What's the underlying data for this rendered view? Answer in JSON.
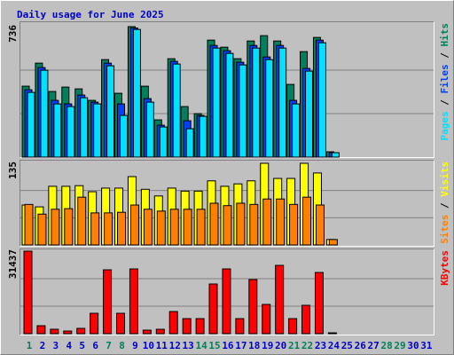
{
  "title": "Daily usage for June 2025",
  "legend_separator": " / ",
  "chart_data": [
    {
      "type": "bar",
      "ylim": [
        0,
        736
      ],
      "yticks": [
        736
      ],
      "series": [
        {
          "name": "Hits",
          "color": "#00805c",
          "values": [
            400,
            530,
            370,
            395,
            385,
            320,
            550,
            360,
            736,
            400,
            210,
            555,
            285,
            245,
            660,
            620,
            555,
            655,
            685,
            655,
            410,
            595,
            675,
            30,
            0,
            0,
            0,
            0,
            0,
            0,
            0
          ]
        },
        {
          "name": "Files",
          "color": "#0040ff",
          "values": [
            380,
            505,
            320,
            300,
            350,
            310,
            530,
            300,
            728,
            330,
            180,
            540,
            205,
            235,
            630,
            600,
            535,
            630,
            565,
            630,
            320,
            500,
            660,
            25,
            0,
            0,
            0,
            0,
            0,
            0,
            0
          ]
        },
        {
          "name": "Pages",
          "color": "#00e0ff",
          "values": [
            365,
            490,
            300,
            285,
            335,
            300,
            515,
            235,
            720,
            310,
            170,
            525,
            160,
            230,
            615,
            585,
            520,
            615,
            550,
            615,
            300,
            485,
            645,
            25,
            0,
            0,
            0,
            0,
            0,
            0,
            0
          ]
        }
      ]
    },
    {
      "type": "bar",
      "ylim": [
        0,
        135
      ],
      "yticks": [
        135
      ],
      "series": [
        {
          "name": "Visits",
          "color": "#ffff00",
          "values": [
            66,
            63,
            97,
            97,
            98,
            88,
            94,
            94,
            113,
            92,
            81,
            94,
            89,
            89,
            106,
            97,
            101,
            106,
            135,
            110,
            110,
            135,
            119,
            9,
            0,
            0,
            0,
            0,
            0,
            0,
            0
          ]
        },
        {
          "name": "Sites",
          "color": "#ff8000",
          "values": [
            67,
            51,
            59,
            60,
            79,
            53,
            53,
            54,
            66,
            59,
            56,
            59,
            59,
            59,
            69,
            65,
            69,
            67,
            76,
            76,
            67,
            79,
            66,
            9,
            0,
            0,
            0,
            0,
            0,
            0,
            0
          ]
        }
      ]
    },
    {
      "type": "bar",
      "ylim": [
        0,
        31437
      ],
      "yticks": [
        31437
      ],
      "categories": [
        "1",
        "2",
        "3",
        "4",
        "5",
        "6",
        "7",
        "8",
        "9",
        "10",
        "11",
        "12",
        "13",
        "14",
        "15",
        "16",
        "17",
        "18",
        "19",
        "20",
        "21",
        "22",
        "23",
        "24",
        "25",
        "26",
        "27",
        "28",
        "29",
        "30",
        "31"
      ],
      "label_colors": [
        "#00805c",
        "#0000cc",
        "#0000cc",
        "#0000cc",
        "#0000cc",
        "#0000cc",
        "#00805c",
        "#00805c",
        "#0000cc",
        "#0000cc",
        "#0000cc",
        "#0000cc",
        "#0000cc",
        "#00805c",
        "#00805c",
        "#0000cc",
        "#0000cc",
        "#0000cc",
        "#0000cc",
        "#0000cc",
        "#00805c",
        "#00805c",
        "#0000cc",
        "#0000cc",
        "#0000cc",
        "#0000cc",
        "#0000cc",
        "#00805c",
        "#00805c",
        "#0000cc",
        "#0000cc"
      ],
      "series": [
        {
          "name": "KBytes",
          "color": "#ff0000",
          "values": [
            31437,
            3042,
            1690,
            1014,
            2028,
            7774,
            24336,
            7774,
            24674,
            1352,
            1690,
            8450,
            5746,
            5746,
            18928,
            24674,
            5746,
            20618,
            11154,
            26026,
            5746,
            10816,
            23322,
            338,
            0,
            0,
            0,
            0,
            0,
            0,
            0
          ]
        }
      ]
    }
  ]
}
